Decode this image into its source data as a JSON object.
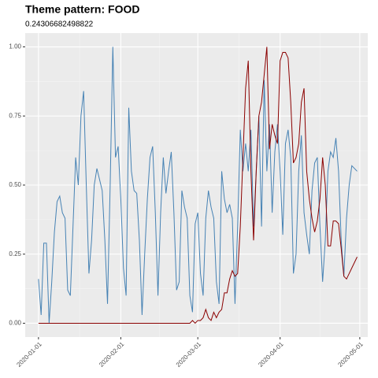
{
  "chart_data": {
    "type": "line",
    "title": "Theme pattern: FOOD",
    "subtitle": "0.24306682498822",
    "x": [
      "2020-01-01",
      "2020-01-02",
      "2020-01-03",
      "2020-01-04",
      "2020-01-05",
      "2020-01-06",
      "2020-01-07",
      "2020-01-08",
      "2020-01-09",
      "2020-01-10",
      "2020-01-11",
      "2020-01-12",
      "2020-01-13",
      "2020-01-14",
      "2020-01-15",
      "2020-01-16",
      "2020-01-17",
      "2020-01-18",
      "2020-01-19",
      "2020-01-20",
      "2020-01-21",
      "2020-01-22",
      "2020-01-23",
      "2020-01-24",
      "2020-01-25",
      "2020-01-26",
      "2020-01-27",
      "2020-01-28",
      "2020-01-29",
      "2020-01-30",
      "2020-01-31",
      "2020-02-01",
      "2020-02-02",
      "2020-02-03",
      "2020-02-04",
      "2020-02-05",
      "2020-02-06",
      "2020-02-07",
      "2020-02-08",
      "2020-02-09",
      "2020-02-10",
      "2020-02-11",
      "2020-02-12",
      "2020-02-13",
      "2020-02-14",
      "2020-02-15",
      "2020-02-16",
      "2020-02-17",
      "2020-02-18",
      "2020-02-19",
      "2020-02-20",
      "2020-02-21",
      "2020-02-22",
      "2020-02-23",
      "2020-02-24",
      "2020-02-25",
      "2020-02-26",
      "2020-02-27",
      "2020-02-28",
      "2020-02-29",
      "2020-03-01",
      "2020-03-02",
      "2020-03-03",
      "2020-03-04",
      "2020-03-05",
      "2020-03-06",
      "2020-03-07",
      "2020-03-08",
      "2020-03-09",
      "2020-03-10",
      "2020-03-11",
      "2020-03-12",
      "2020-03-13",
      "2020-03-14",
      "2020-03-15",
      "2020-03-16",
      "2020-03-17",
      "2020-03-18",
      "2020-03-19",
      "2020-03-20",
      "2020-03-21",
      "2020-03-22",
      "2020-03-23",
      "2020-03-24",
      "2020-03-25",
      "2020-03-26",
      "2020-03-27",
      "2020-03-28",
      "2020-03-29",
      "2020-03-30",
      "2020-03-31",
      "2020-04-01",
      "2020-04-02",
      "2020-04-03",
      "2020-04-04",
      "2020-04-05",
      "2020-04-06",
      "2020-04-07",
      "2020-04-08",
      "2020-04-09",
      "2020-04-10",
      "2020-04-11",
      "2020-04-12",
      "2020-04-13",
      "2020-04-14",
      "2020-04-15",
      "2020-04-16",
      "2020-04-17",
      "2020-04-18",
      "2020-04-19",
      "2020-04-20",
      "2020-04-21",
      "2020-04-22",
      "2020-04-23",
      "2020-04-24",
      "2020-04-25",
      "2020-04-26",
      "2020-04-27",
      "2020-04-28",
      "2020-04-29",
      "2020-04-30"
    ],
    "series": [
      {
        "color": "#4682b4",
        "values": [
          0.16,
          0.03,
          0.29,
          0.29,
          0.0,
          0.15,
          0.33,
          0.44,
          0.46,
          0.4,
          0.38,
          0.12,
          0.1,
          0.35,
          0.6,
          0.5,
          0.75,
          0.84,
          0.5,
          0.18,
          0.3,
          0.5,
          0.56,
          0.52,
          0.48,
          0.3,
          0.07,
          0.5,
          1.0,
          0.6,
          0.64,
          0.45,
          0.2,
          0.1,
          0.78,
          0.55,
          0.48,
          0.47,
          0.3,
          0.03,
          0.25,
          0.45,
          0.6,
          0.64,
          0.4,
          0.1,
          0.4,
          0.6,
          0.47,
          0.55,
          0.62,
          0.4,
          0.12,
          0.15,
          0.48,
          0.42,
          0.38,
          0.1,
          0.04,
          0.36,
          0.4,
          0.18,
          0.1,
          0.38,
          0.48,
          0.42,
          0.38,
          0.15,
          0.07,
          0.55,
          0.45,
          0.4,
          0.43,
          0.38,
          0.07,
          0.35,
          0.7,
          0.55,
          0.65,
          0.55,
          0.7,
          0.35,
          0.55,
          0.75,
          0.35,
          0.88,
          0.55,
          0.72,
          0.4,
          0.62,
          0.72,
          0.55,
          0.32,
          0.65,
          0.7,
          0.6,
          0.18,
          0.25,
          0.55,
          0.68,
          0.4,
          0.32,
          0.25,
          0.48,
          0.58,
          0.6,
          0.35,
          0.15,
          0.3,
          0.55,
          0.62,
          0.6,
          0.67,
          0.55,
          0.3,
          0.17,
          0.38,
          0.5,
          0.57,
          0.56,
          0.55
        ]
      },
      {
        "color": "#8b0000",
        "values": [
          0,
          0,
          0,
          0,
          0,
          0,
          0,
          0,
          0,
          0,
          0,
          0,
          0,
          0,
          0,
          0,
          0,
          0,
          0,
          0,
          0,
          0,
          0,
          0,
          0,
          0,
          0,
          0,
          0,
          0,
          0,
          0,
          0,
          0,
          0,
          0,
          0,
          0,
          0,
          0,
          0,
          0,
          0,
          0,
          0,
          0,
          0,
          0,
          0,
          0,
          0,
          0,
          0,
          0,
          0,
          0,
          0,
          0.0,
          0.01,
          0.0,
          0.01,
          0.01,
          0.02,
          0.05,
          0.02,
          0.01,
          0.04,
          0.02,
          0.04,
          0.05,
          0.11,
          0.11,
          0.16,
          0.19,
          0.17,
          0.18,
          0.35,
          0.6,
          0.85,
          0.95,
          0.55,
          0.3,
          0.55,
          0.75,
          0.8,
          0.9,
          1.0,
          0.63,
          0.72,
          0.68,
          0.65,
          0.95,
          0.98,
          0.98,
          0.96,
          0.8,
          0.58,
          0.6,
          0.65,
          0.8,
          0.85,
          0.55,
          0.45,
          0.38,
          0.33,
          0.37,
          0.45,
          0.6,
          0.5,
          0.28,
          0.28,
          0.37,
          0.37,
          0.36,
          0.27,
          0.17,
          0.16,
          0.18,
          0.2,
          0.22,
          0.24
        ]
      }
    ],
    "xlim": [
      "2019-12-27",
      "2020-05-04"
    ],
    "xticks": [
      "2020-01-01",
      "2020-02-01",
      "2020-03-01",
      "2020-04-01",
      "2020-05-01"
    ],
    "ylim": [
      -0.05,
      1.05
    ],
    "yticks": [
      {
        "value": 0,
        "label": "0.00"
      },
      {
        "value": 0.25,
        "label": "0.25"
      },
      {
        "value": 0.5,
        "label": "0.50"
      },
      {
        "value": 0.75,
        "label": "0.75"
      },
      {
        "value": 1,
        "label": "1.00"
      }
    ],
    "grid": true
  }
}
